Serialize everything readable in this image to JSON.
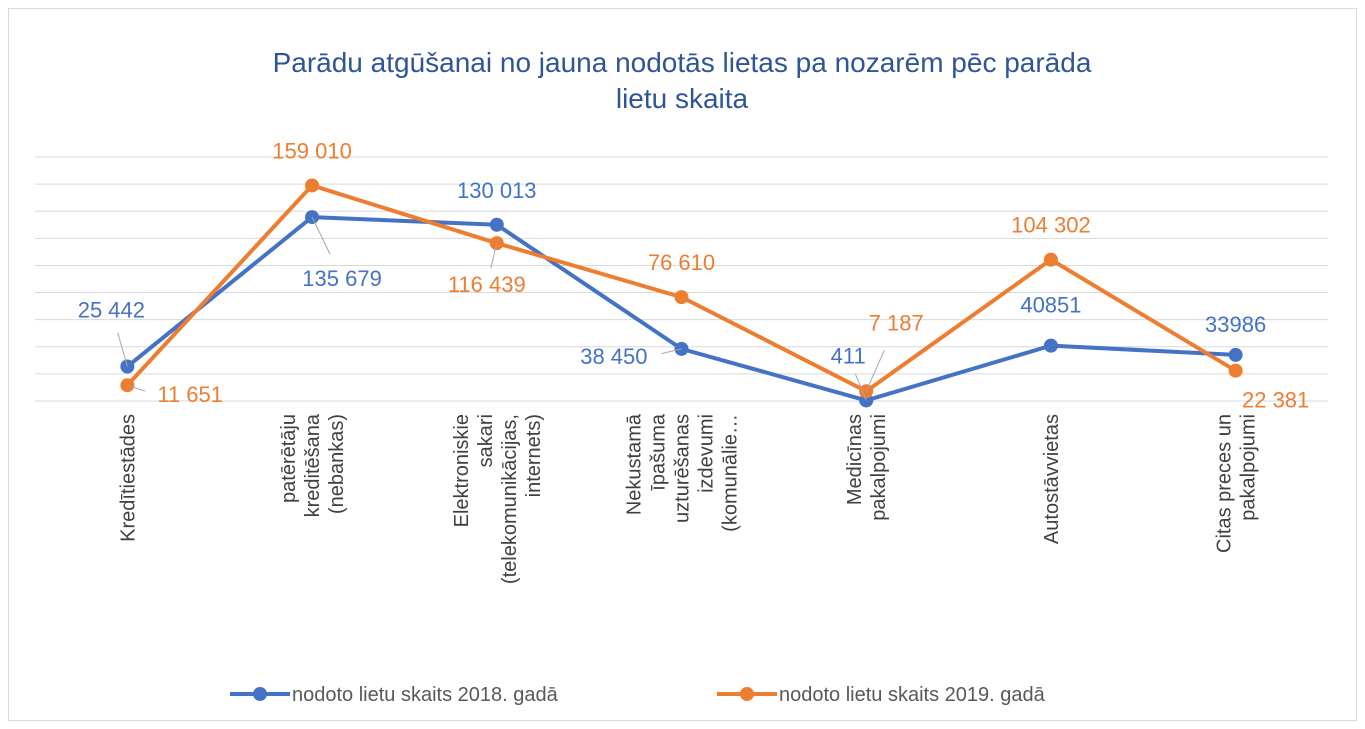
{
  "chart_data": {
    "type": "line",
    "title": "Parādu atgūšanai no jauna nodotās lietas pa nozarēm pēc parāda lietu skaita",
    "categories": [
      "Kredītiestādes",
      "patērētāju kreditēšana (nebankas)",
      "Elektroniskie sakari (telekomunikācijas, internets)",
      "Nekustamā īpašuma uzturēšanas izdevumi (komunālie…",
      "Medicīnas pakalpojumi",
      "Autostāvvietas",
      "Citas preces un pakalpojumi"
    ],
    "series": [
      {
        "name": "nodoto lietu skaits 2018. gadā",
        "color": "#4472c4",
        "values": [
          25442,
          135679,
          130013,
          38450,
          411,
          40851,
          33986
        ],
        "value_labels": [
          "25 442",
          "135 679",
          "130 013",
          "38 450",
          "411",
          "40851",
          "33986"
        ]
      },
      {
        "name": "nodoto lietu skaits 2019. gadā",
        "color": "#ed7d31",
        "values": [
          11651,
          159010,
          116439,
          76610,
          7187,
          104302,
          22381
        ],
        "value_labels": [
          "11 651",
          "159 010",
          "116 439",
          "76 610",
          "7 187",
          "104 302",
          "22 381"
        ]
      }
    ],
    "ylim": [
      0,
      180000
    ],
    "yticks": [
      0,
      20000,
      40000,
      60000,
      80000,
      100000,
      120000,
      140000,
      160000,
      180000
    ],
    "grid": true,
    "legend": "bottom"
  }
}
